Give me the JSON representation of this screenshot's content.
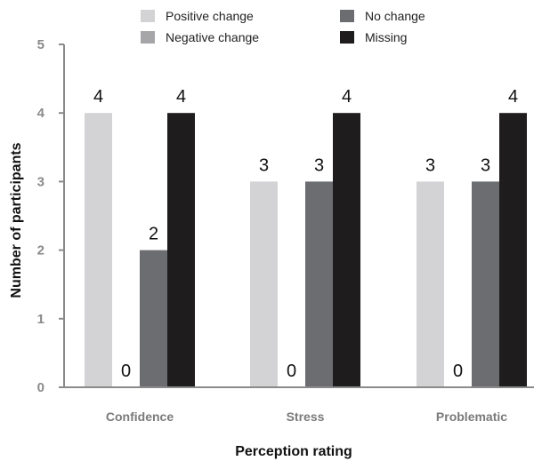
{
  "chart_data": {
    "type": "bar",
    "title": "",
    "xlabel": "Perception rating",
    "ylabel": "Number of participants",
    "ylim": [
      0,
      5
    ],
    "yticks": [
      0,
      1,
      2,
      3,
      4,
      5
    ],
    "grid": false,
    "legend_position": "top",
    "categories": [
      "Confidence",
      "Stress",
      "Problematic"
    ],
    "series": [
      {
        "name": "Positive change",
        "color": "#d3d3d5",
        "values": [
          4,
          3,
          3
        ]
      },
      {
        "name": "Negative change",
        "color": "#a6a6a8",
        "values": [
          0,
          0,
          0
        ]
      },
      {
        "name": "No change",
        "color": "#6c6d71",
        "values": [
          2,
          3,
          3
        ]
      },
      {
        "name": "Missing",
        "color": "#1f1c1d",
        "values": [
          4,
          4,
          4
        ]
      }
    ],
    "legend_order": [
      "Positive change",
      "No change",
      "Negative change",
      "Missing"
    ]
  }
}
